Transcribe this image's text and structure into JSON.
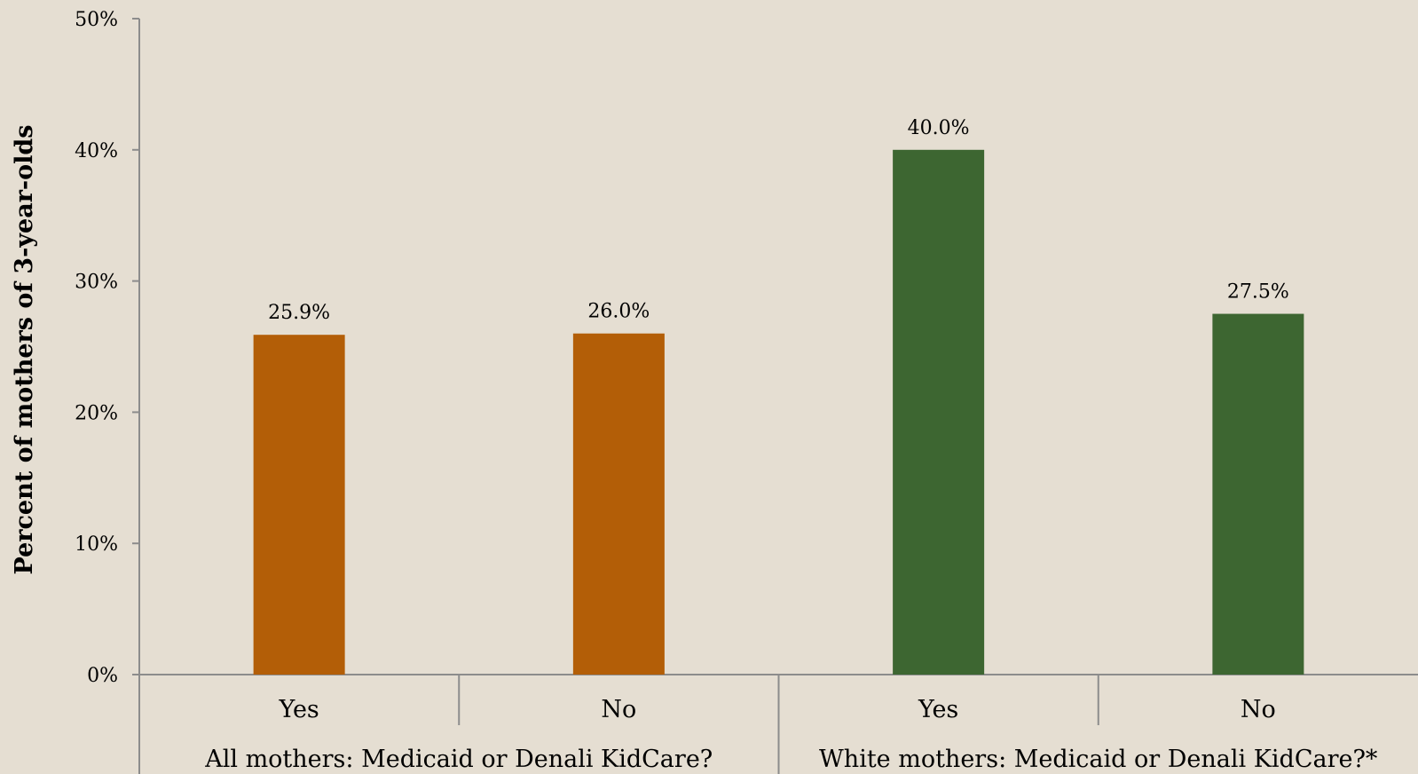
{
  "chart_data": {
    "type": "bar",
    "ylabel": "Percent of mothers of 3-year-olds",
    "ylim": [
      0,
      50
    ],
    "yticks": [
      {
        "value": 0,
        "label": "0%"
      },
      {
        "value": 10,
        "label": "10%"
      },
      {
        "value": 20,
        "label": "20%"
      },
      {
        "value": 30,
        "label": "30%"
      },
      {
        "value": 40,
        "label": "40%"
      },
      {
        "value": 50,
        "label": "50%"
      }
    ],
    "groups": [
      {
        "label": "All mothers: Medicaid or Denali KidCare?",
        "color": "#b35e07",
        "bars": [
          {
            "category": "Yes",
            "value": 25.9,
            "label": "25.9%"
          },
          {
            "category": "No",
            "value": 26.0,
            "label": "26.0%"
          }
        ]
      },
      {
        "label": "White mothers: Medicaid or Denali KidCare?*",
        "color": "#3d6631",
        "bars": [
          {
            "category": "Yes",
            "value": 40.0,
            "label": "40.0%"
          },
          {
            "category": "No",
            "value": 27.5,
            "label": "27.5%"
          }
        ]
      }
    ],
    "grid": false,
    "legend": "none"
  }
}
